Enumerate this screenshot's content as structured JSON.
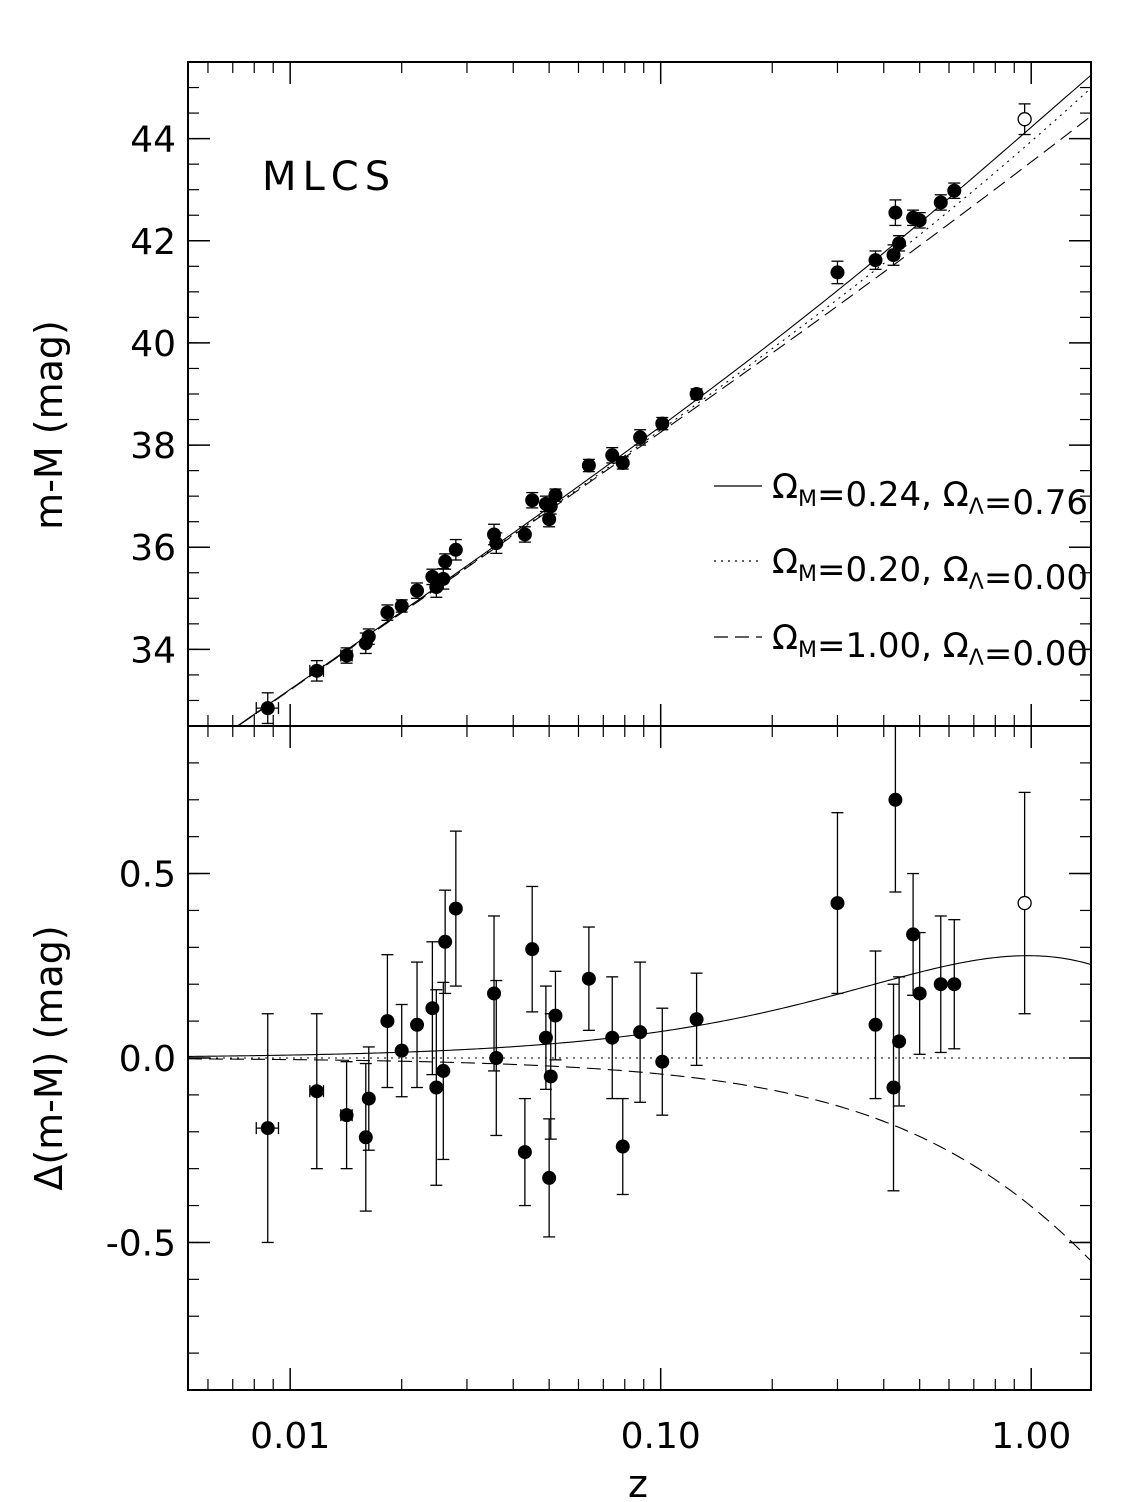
{
  "chart_data": [
    {
      "type": "scatter",
      "panel": "top",
      "label": "MLCS",
      "xlabel": "",
      "ylabel": "m-M (mag)",
      "xscale": "log",
      "xlim": [
        0.0053,
        1.45
      ],
      "ylim": [
        32.5,
        45.5
      ],
      "yticks_major": [
        34,
        36,
        38,
        40,
        42,
        44
      ],
      "yticks_labels": [
        "34",
        "36",
        "38",
        "40",
        "42",
        "44"
      ],
      "grid": false,
      "legend": {
        "placement": "right-middle",
        "entries": [
          {
            "style": "solid",
            "text": "Ω",
            "sub": "M",
            "text2": "=0.24, Ω",
            "sub2": "Λ",
            "text3": "=0.76"
          },
          {
            "style": "dotted",
            "text": "Ω",
            "sub": "M",
            "text2": "=0.20, Ω",
            "sub2": "Λ",
            "text3": "=0.00"
          },
          {
            "style": "dashed",
            "text": "Ω",
            "sub": "M",
            "text2": "=1.00, Ω",
            "sub2": "Λ",
            "text3": "=0.00"
          }
        ]
      },
      "models": [
        {
          "style": "solid",
          "omega_m": 0.24,
          "omega_l": 0.76
        },
        {
          "style": "dotted",
          "omega_m": 0.2,
          "omega_l": 0.0
        },
        {
          "style": "dashed",
          "omega_m": 1.0,
          "omega_l": 0.0
        }
      ],
      "points": [
        {
          "z": 0.0087,
          "y": 32.85,
          "err": 0.3,
          "xerr": 0.0006,
          "open": false
        },
        {
          "z": 0.0118,
          "y": 33.58,
          "err": 0.2,
          "xerr": 0.0005,
          "open": false
        },
        {
          "z": 0.0142,
          "y": 33.88,
          "err": 0.15,
          "xerr": 0.0005,
          "open": false
        },
        {
          "z": 0.016,
          "y": 34.12,
          "err": 0.2,
          "xerr": 0.0,
          "open": false
        },
        {
          "z": 0.0163,
          "y": 34.25,
          "err": 0.15,
          "xerr": 0.0,
          "open": false
        },
        {
          "z": 0.0183,
          "y": 34.72,
          "err": 0.15,
          "xerr": 0.0,
          "open": false
        },
        {
          "z": 0.02,
          "y": 34.85,
          "err": 0.12,
          "xerr": 0.0,
          "open": false
        },
        {
          "z": 0.022,
          "y": 35.15,
          "err": 0.15,
          "xerr": 0.0,
          "open": false
        },
        {
          "z": 0.0242,
          "y": 35.42,
          "err": 0.15,
          "xerr": 0.0,
          "open": false
        },
        {
          "z": 0.0248,
          "y": 35.22,
          "err": 0.2,
          "xerr": 0.0,
          "open": false
        },
        {
          "z": 0.0259,
          "y": 35.38,
          "err": 0.2,
          "xerr": 0.0,
          "open": false
        },
        {
          "z": 0.0262,
          "y": 35.72,
          "err": 0.15,
          "xerr": 0.0,
          "open": false
        },
        {
          "z": 0.028,
          "y": 35.95,
          "err": 0.2,
          "xerr": 0.0,
          "open": false
        },
        {
          "z": 0.0355,
          "y": 36.25,
          "err": 0.2,
          "xerr": 0.0,
          "open": false
        },
        {
          "z": 0.036,
          "y": 36.08,
          "err": 0.2,
          "xerr": 0.0,
          "open": false
        },
        {
          "z": 0.043,
          "y": 36.25,
          "err": 0.15,
          "xerr": 0.0,
          "open": false
        },
        {
          "z": 0.045,
          "y": 36.92,
          "err": 0.15,
          "xerr": 0.0,
          "open": false
        },
        {
          "z": 0.049,
          "y": 36.85,
          "err": 0.15,
          "xerr": 0.0,
          "open": false
        },
        {
          "z": 0.05,
          "y": 36.55,
          "err": 0.15,
          "xerr": 0.0,
          "open": false
        },
        {
          "z": 0.0505,
          "y": 36.8,
          "err": 0.15,
          "xerr": 0.0,
          "open": false
        },
        {
          "z": 0.052,
          "y": 37.02,
          "err": 0.12,
          "xerr": 0.0,
          "open": false
        },
        {
          "z": 0.064,
          "y": 37.6,
          "err": 0.12,
          "xerr": 0.0,
          "open": false
        },
        {
          "z": 0.074,
          "y": 37.8,
          "err": 0.15,
          "xerr": 0.0,
          "open": false
        },
        {
          "z": 0.079,
          "y": 37.65,
          "err": 0.12,
          "xerr": 0.0,
          "open": false
        },
        {
          "z": 0.088,
          "y": 38.15,
          "err": 0.15,
          "xerr": 0.0,
          "open": false
        },
        {
          "z": 0.101,
          "y": 38.42,
          "err": 0.12,
          "xerr": 0.0,
          "open": false
        },
        {
          "z": 0.125,
          "y": 39.0,
          "err": 0.1,
          "xerr": 0.0,
          "open": false
        },
        {
          "z": 0.3,
          "y": 41.38,
          "err": 0.22,
          "xerr": 0.0,
          "open": false
        },
        {
          "z": 0.38,
          "y": 41.62,
          "err": 0.18,
          "xerr": 0.0,
          "open": false
        },
        {
          "z": 0.425,
          "y": 41.72,
          "err": 0.2,
          "xerr": 0.0,
          "open": false
        },
        {
          "z": 0.43,
          "y": 42.55,
          "err": 0.25,
          "xerr": 0.0,
          "open": false
        },
        {
          "z": 0.44,
          "y": 41.95,
          "err": 0.15,
          "xerr": 0.0,
          "open": false
        },
        {
          "z": 0.48,
          "y": 42.45,
          "err": 0.15,
          "xerr": 0.0,
          "open": false
        },
        {
          "z": 0.5,
          "y": 42.4,
          "err": 0.15,
          "xerr": 0.0,
          "open": false
        },
        {
          "z": 0.57,
          "y": 42.75,
          "err": 0.15,
          "xerr": 0.0,
          "open": false
        },
        {
          "z": 0.62,
          "y": 42.98,
          "err": 0.15,
          "xerr": 0.0,
          "open": false
        },
        {
          "z": 0.96,
          "y": 44.38,
          "err": 0.3,
          "xerr": 0.0,
          "open": true
        }
      ]
    },
    {
      "type": "scatter",
      "panel": "bottom",
      "xlabel": "z",
      "ylabel": "Δ(m-M) (mag)",
      "xscale": "log",
      "xlim": [
        0.0053,
        1.45
      ],
      "ylim": [
        -0.9,
        0.9
      ],
      "yticks_major": [
        -0.5,
        0.0,
        0.5
      ],
      "yticks_labels": [
        "-0.5",
        "0.0",
        "0.5"
      ],
      "xticks_major": [
        0.01,
        0.1,
        1.0
      ],
      "xticks_labels": [
        "0.01",
        "0.10",
        "1.00"
      ],
      "grid": false,
      "points": [
        {
          "z": 0.0087,
          "y": -0.19,
          "err": 0.31,
          "xerr": 0.0006,
          "open": false
        },
        {
          "z": 0.0118,
          "y": -0.09,
          "err": 0.21,
          "xerr": 0.0005,
          "open": false
        },
        {
          "z": 0.0142,
          "y": -0.155,
          "err": 0.145,
          "xerr": 0.0005,
          "open": false
        },
        {
          "z": 0.016,
          "y": -0.215,
          "err": 0.2,
          "xerr": 0.0,
          "open": false
        },
        {
          "z": 0.0163,
          "y": -0.11,
          "err": 0.14,
          "xerr": 0.0,
          "open": false
        },
        {
          "z": 0.0183,
          "y": 0.1,
          "err": 0.18,
          "xerr": 0.0,
          "open": false
        },
        {
          "z": 0.02,
          "y": 0.02,
          "err": 0.125,
          "xerr": 0.0,
          "open": false
        },
        {
          "z": 0.022,
          "y": 0.09,
          "err": 0.17,
          "xerr": 0.0,
          "open": false
        },
        {
          "z": 0.0242,
          "y": 0.135,
          "err": 0.18,
          "xerr": 0.0,
          "open": false
        },
        {
          "z": 0.0248,
          "y": -0.08,
          "err": 0.265,
          "xerr": 0.0,
          "open": false
        },
        {
          "z": 0.0259,
          "y": -0.035,
          "err": 0.24,
          "xerr": 0.0,
          "open": false
        },
        {
          "z": 0.0262,
          "y": 0.315,
          "err": 0.14,
          "xerr": 0.0,
          "open": false
        },
        {
          "z": 0.028,
          "y": 0.405,
          "err": 0.21,
          "xerr": 0.0,
          "open": false
        },
        {
          "z": 0.0355,
          "y": 0.175,
          "err": 0.21,
          "xerr": 0.0,
          "open": false
        },
        {
          "z": 0.036,
          "y": 0.0,
          "err": 0.21,
          "xerr": 0.0,
          "open": false
        },
        {
          "z": 0.043,
          "y": -0.255,
          "err": 0.145,
          "xerr": 0.0,
          "open": false
        },
        {
          "z": 0.045,
          "y": 0.295,
          "err": 0.17,
          "xerr": 0.0,
          "open": false
        },
        {
          "z": 0.049,
          "y": 0.055,
          "err": 0.14,
          "xerr": 0.0,
          "open": false
        },
        {
          "z": 0.05,
          "y": -0.325,
          "err": 0.16,
          "xerr": 0.0,
          "open": false
        },
        {
          "z": 0.0505,
          "y": -0.05,
          "err": 0.17,
          "xerr": 0.0,
          "open": false
        },
        {
          "z": 0.052,
          "y": 0.115,
          "err": 0.12,
          "xerr": 0.0,
          "open": false
        },
        {
          "z": 0.064,
          "y": 0.215,
          "err": 0.14,
          "xerr": 0.0,
          "open": false
        },
        {
          "z": 0.074,
          "y": 0.055,
          "err": 0.165,
          "xerr": 0.0,
          "open": false
        },
        {
          "z": 0.079,
          "y": -0.24,
          "err": 0.13,
          "xerr": 0.0,
          "open": false
        },
        {
          "z": 0.088,
          "y": 0.07,
          "err": 0.19,
          "xerr": 0.0,
          "open": false
        },
        {
          "z": 0.101,
          "y": -0.01,
          "err": 0.145,
          "xerr": 0.0,
          "open": false
        },
        {
          "z": 0.125,
          "y": 0.105,
          "err": 0.125,
          "xerr": 0.0,
          "open": false
        },
        {
          "z": 0.3,
          "y": 0.42,
          "err": 0.245,
          "xerr": 0.0,
          "open": false
        },
        {
          "z": 0.38,
          "y": 0.09,
          "err": 0.2,
          "xerr": 0.0,
          "open": false
        },
        {
          "z": 0.425,
          "y": -0.08,
          "err": 0.28,
          "xerr": 0.0,
          "open": false
        },
        {
          "z": 0.43,
          "y": 0.7,
          "err": 0.25,
          "xerr": 0.0,
          "open": false
        },
        {
          "z": 0.44,
          "y": 0.045,
          "err": 0.175,
          "xerr": 0.0,
          "open": false
        },
        {
          "z": 0.48,
          "y": 0.335,
          "err": 0.165,
          "xerr": 0.0,
          "open": false
        },
        {
          "z": 0.5,
          "y": 0.175,
          "err": 0.165,
          "xerr": 0.0,
          "open": false
        },
        {
          "z": 0.57,
          "y": 0.2,
          "err": 0.185,
          "xerr": 0.0,
          "open": false
        },
        {
          "z": 0.62,
          "y": 0.2,
          "err": 0.175,
          "xerr": 0.0,
          "open": false
        },
        {
          "z": 0.96,
          "y": 0.42,
          "err": 0.3,
          "xerr": 0.0,
          "open": true
        }
      ]
    }
  ]
}
